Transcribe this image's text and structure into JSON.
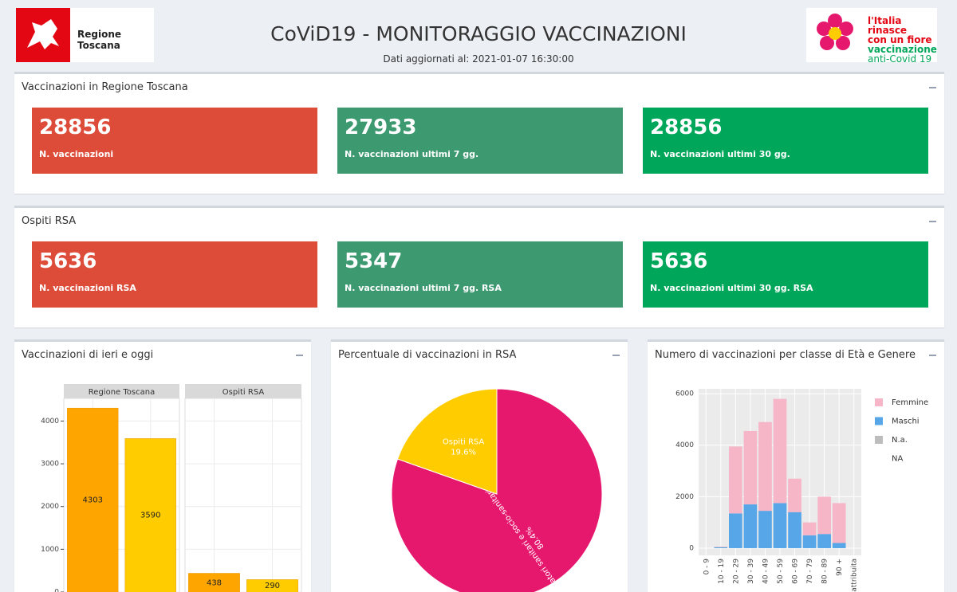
{
  "header": {
    "title": "CoViD19 - MONITORAGGIO VACCINAZIONI",
    "updated": "Dati aggiornati al: 2021-01-07 16:30:00",
    "region_logo": "Regione Toscana",
    "campaign_logo": [
      "l'Italia rinasce",
      "con un fiore",
      "vaccinazione",
      "anti-Covid 19"
    ]
  },
  "boxes": [
    {
      "title": "Vaccinazioni in Regione Toscana",
      "cards": [
        {
          "value": 28856,
          "label": "N. vaccinazioni",
          "color": "#dd4b39"
        },
        {
          "value": 27933,
          "label": "N. vaccinazioni ultimi 7 gg.",
          "color": "#3d9970"
        },
        {
          "value": 28856,
          "label": "N. vaccinazioni ultimi 30 gg.",
          "color": "#00a65a"
        }
      ]
    },
    {
      "title": "Ospiti RSA",
      "cards": [
        {
          "value": 5636,
          "label": "N. vaccinazioni RSA",
          "color": "#dd4b39"
        },
        {
          "value": 5347,
          "label": "N. vaccinazioni ultimi 7 gg. RSA",
          "color": "#3d9970"
        },
        {
          "value": 5636,
          "label": "N. vaccinazioni ultimi 30 gg. RSA",
          "color": "#00a65a"
        }
      ]
    }
  ],
  "chart_data": [
    {
      "type": "facet_bar",
      "title": "Vaccinazioni di ieri e oggi",
      "panels": [
        {
          "name": "Regione Toscana",
          "values": [
            4303,
            3590
          ]
        },
        {
          "name": "Ospiti RSA",
          "values": [
            438,
            290
          ]
        }
      ],
      "colors": [
        "#ffa500",
        "#ffcc00"
      ],
      "ylim": [
        0,
        4530
      ],
      "yticks": [
        0,
        1000,
        2000,
        3000,
        4000
      ]
    },
    {
      "type": "pie",
      "title": "Percentuale di vaccinazioni in RSA",
      "categories": [
        "Operatori sanitari e socio-sanitari",
        "Ospiti RSA"
      ],
      "values": [
        80.4,
        19.6
      ],
      "value_labels": [
        "80.4%",
        "19.6%"
      ],
      "colors": [
        "#e6186e",
        "#ffcc00"
      ]
    },
    {
      "type": "stacked_bar",
      "title": "Numero di vaccinazioni per classe di Età e Genere",
      "categories": [
        "0 - 9",
        "10 - 19",
        "20 - 29",
        "30 - 39",
        "40 - 49",
        "50 - 59",
        "60 - 69",
        "70 - 79",
        "80 - 89",
        "90 +",
        "Non attribuita"
      ],
      "series": [
        {
          "name": "Maschi",
          "color": "#56a6e8",
          "values": [
            0,
            30,
            1350,
            1700,
            1450,
            1750,
            1400,
            500,
            550,
            200,
            0
          ]
        },
        {
          "name": "N.a.",
          "color": "#bdbdbd",
          "values": [
            0,
            20,
            0,
            0,
            0,
            0,
            0,
            0,
            0,
            0,
            0
          ]
        },
        {
          "name": "Femmine",
          "color": "#f7b6c8",
          "values": [
            0,
            10,
            2600,
            2850,
            3450,
            4050,
            1300,
            500,
            1450,
            1550,
            0
          ]
        },
        {
          "name": "NA",
          "values": [
            0,
            0,
            0,
            0,
            0,
            0,
            0,
            0,
            0,
            0,
            0
          ]
        }
      ],
      "legend_order": [
        2,
        0,
        1,
        3
      ],
      "ylim": [
        -280,
        6190
      ],
      "yticks": [
        0,
        2000,
        4000,
        6000
      ]
    }
  ]
}
